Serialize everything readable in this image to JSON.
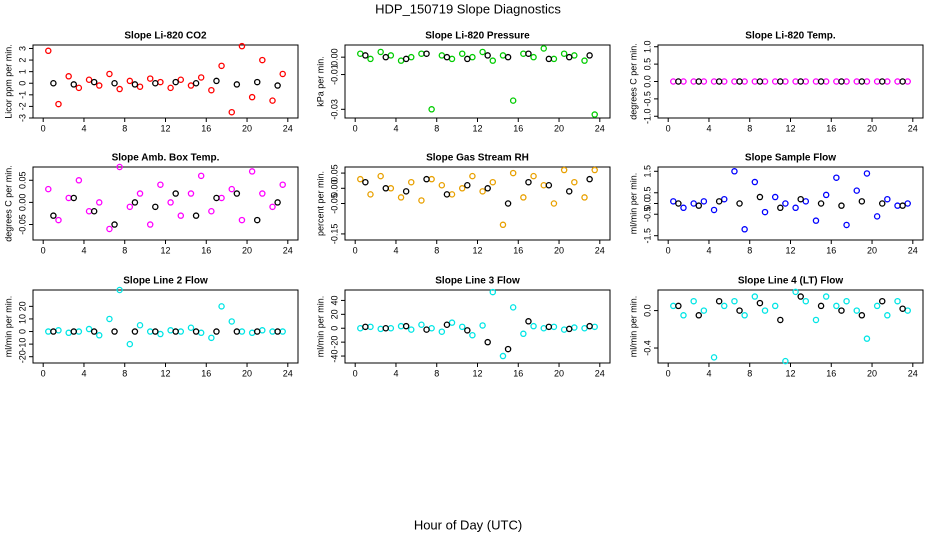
{
  "title": "HDP_150719  Slope Diagnostics",
  "xlabel": "Hour of Day (UTC)",
  "chart_data": [
    {
      "type": "scatter",
      "title": "Slope Li-820 CO2",
      "ylabel": "Licor ppm per min.",
      "xlim": [
        -1,
        25
      ],
      "xticks": [
        0,
        4,
        8,
        12,
        16,
        20,
        24
      ],
      "ylim": [
        -3,
        3.3
      ],
      "yticks": [
        -3,
        -2,
        -1,
        0,
        1,
        2,
        3
      ],
      "series": [
        {
          "color": "#ff0000",
          "x": [
            0.5,
            1.5,
            2.5,
            3.5,
            4.5,
            5.5,
            6.5,
            7.5,
            8.5,
            9.5,
            10.5,
            11.5,
            12.5,
            13.5,
            14.5,
            15.5,
            16.5,
            17.5,
            18.5,
            19.5,
            20.5,
            21.5,
            22.5,
            23.5
          ],
          "values": [
            2.8,
            -1.8,
            0.6,
            -0.4,
            0.3,
            -0.2,
            0.8,
            -0.5,
            0.2,
            -0.3,
            0.4,
            0.1,
            -0.4,
            0.3,
            -0.2,
            0.5,
            -0.6,
            1.5,
            -2.5,
            3.2,
            -1.2,
            2.0,
            -1.5,
            0.8
          ]
        },
        {
          "color": "#000000",
          "x": [
            1,
            3,
            5,
            7,
            9,
            11,
            13,
            15,
            17,
            19,
            21,
            23
          ],
          "values": [
            0,
            -0.1,
            0.1,
            0,
            -0.1,
            0,
            0.1,
            0,
            0.2,
            -0.1,
            0.1,
            -0.2
          ]
        }
      ]
    },
    {
      "type": "scatter",
      "title": "Slope Li-820 Pressure",
      "ylabel": "kPa per min.",
      "xlim": [
        -1,
        25
      ],
      "xticks": [
        0,
        4,
        8,
        12,
        16,
        20,
        24
      ],
      "ylim": [
        -0.035,
        0.007
      ],
      "yticks": [
        {
          "value": -0.03,
          "label": "-0.03"
        },
        {
          "value": -0.01,
          "label": "-0.01"
        },
        {
          "value": 0,
          "label": "0.00"
        }
      ],
      "series": [
        {
          "color": "#00cc00",
          "x": [
            0.5,
            1.5,
            2.5,
            3.5,
            4.5,
            5.5,
            6.5,
            7.5,
            8.5,
            9.5,
            10.5,
            11.5,
            12.5,
            13.5,
            14.5,
            15.5,
            16.5,
            17.5,
            18.5,
            19.5,
            20.5,
            21.5,
            22.5,
            23.5
          ],
          "values": [
            0.002,
            -0.001,
            0.003,
            0.001,
            -0.002,
            0.0,
            0.002,
            -0.03,
            0.001,
            -0.001,
            0.002,
            0.0,
            0.003,
            -0.002,
            0.001,
            -0.025,
            0.002,
            0.0,
            0.005,
            -0.001,
            0.002,
            0.001,
            -0.002,
            -0.033
          ]
        },
        {
          "color": "#000000",
          "x": [
            1,
            3,
            5,
            7,
            9,
            11,
            13,
            15,
            17,
            19,
            21,
            23
          ],
          "values": [
            0.001,
            0.0,
            -0.001,
            0.002,
            0.0,
            -0.001,
            0.001,
            0.0,
            0.002,
            -0.001,
            0.0,
            0.001
          ]
        }
      ]
    },
    {
      "type": "scatter",
      "title": "Slope Li-820 Temp.",
      "ylabel": "degrees C per min.",
      "xlim": [
        -1,
        25
      ],
      "xticks": [
        0,
        4,
        8,
        12,
        16,
        20,
        24
      ],
      "ylim": [
        -1.05,
        1.05
      ],
      "yticks": [
        {
          "value": -1,
          "label": "-1.0"
        },
        {
          "value": -0.5,
          "label": "-0.5"
        },
        {
          "value": 0,
          "label": "0.0"
        },
        {
          "value": 0.5,
          "label": "0.5"
        },
        {
          "value": 1,
          "label": "1.0"
        }
      ],
      "series": [
        {
          "color": "#ff00ff",
          "x": [
            0.5,
            1.5,
            2.5,
            3.5,
            4.5,
            5.5,
            6.5,
            7.5,
            8.5,
            9.5,
            10.5,
            11.5,
            12.5,
            13.5,
            14.5,
            15.5,
            16.5,
            17.5,
            18.5,
            19.5,
            20.5,
            21.5,
            22.5,
            23.5
          ],
          "values": [
            0,
            0,
            0,
            0,
            0,
            0,
            0,
            0,
            0,
            0,
            0,
            0,
            0,
            0,
            0,
            0,
            0,
            0,
            0,
            0,
            0,
            0,
            0,
            0
          ]
        },
        {
          "color": "#000000",
          "x": [
            1,
            3,
            5,
            7,
            9,
            11,
            13,
            15,
            17,
            19,
            21,
            23
          ],
          "values": [
            0,
            0,
            0,
            0,
            0,
            0,
            0,
            0,
            0,
            0,
            0,
            0
          ]
        }
      ]
    },
    {
      "type": "scatter",
      "title": "Slope Amb. Box Temp.",
      "ylabel": "degrees C per min.",
      "xlim": [
        -1,
        25
      ],
      "xticks": [
        0,
        4,
        8,
        12,
        16,
        20,
        24
      ],
      "ylim": [
        -0.085,
        0.08
      ],
      "yticks": [
        {
          "value": -0.05,
          "label": "-0.05"
        },
        {
          "value": 0,
          "label": "0.00"
        },
        {
          "value": 0.05,
          "label": "0.05"
        }
      ],
      "series": [
        {
          "color": "#ff00ff",
          "x": [
            0.5,
            1.5,
            2.5,
            3.5,
            4.5,
            5.5,
            6.5,
            7.5,
            8.5,
            9.5,
            10.5,
            11.5,
            12.5,
            13.5,
            14.5,
            15.5,
            16.5,
            17.5,
            18.5,
            19.5,
            20.5,
            21.5,
            22.5,
            23.5
          ],
          "values": [
            0.03,
            -0.04,
            0.01,
            0.05,
            -0.02,
            0.0,
            -0.06,
            0.08,
            -0.01,
            0.02,
            -0.05,
            0.04,
            0.0,
            -0.03,
            0.02,
            0.06,
            -0.02,
            0.01,
            0.03,
            -0.04,
            0.07,
            0.02,
            -0.01,
            0.04
          ]
        },
        {
          "color": "#000000",
          "x": [
            1,
            3,
            5,
            7,
            9,
            11,
            13,
            15,
            17,
            19,
            21,
            23
          ],
          "values": [
            -0.03,
            0.01,
            -0.02,
            -0.05,
            0.0,
            -0.01,
            0.02,
            -0.03,
            0.01,
            0.02,
            -0.04,
            0.0
          ]
        }
      ]
    },
    {
      "type": "scatter",
      "title": "Slope Gas Stream RH",
      "ylabel": "percent per min.",
      "xlim": [
        -1,
        25
      ],
      "xticks": [
        0,
        4,
        8,
        12,
        16,
        20,
        24
      ],
      "ylim": [
        -0.17,
        0.07
      ],
      "yticks": [
        {
          "value": -0.15,
          "label": "-0.15"
        },
        {
          "value": -0.05,
          "label": "-0.05"
        },
        {
          "value": 0,
          "label": "0.00"
        },
        {
          "value": 0.05,
          "label": "0.05"
        }
      ],
      "series": [
        {
          "color": "#e8a000",
          "x": [
            0.5,
            1.5,
            2.5,
            3.5,
            4.5,
            5.5,
            6.5,
            7.5,
            8.5,
            9.5,
            10.5,
            11.5,
            12.5,
            13.5,
            14.5,
            15.5,
            16.5,
            17.5,
            18.5,
            19.5,
            20.5,
            21.5,
            22.5,
            23.5
          ],
          "values": [
            0.03,
            -0.02,
            0.04,
            0.0,
            -0.03,
            0.02,
            -0.04,
            0.03,
            0.01,
            -0.02,
            0.0,
            0.04,
            -0.01,
            0.02,
            -0.12,
            0.05,
            -0.03,
            0.04,
            0.01,
            -0.05,
            0.06,
            0.02,
            -0.03,
            0.06
          ]
        },
        {
          "color": "#000000",
          "x": [
            1,
            3,
            5,
            7,
            9,
            11,
            13,
            15,
            17,
            19,
            21,
            23
          ],
          "values": [
            0.02,
            0.0,
            -0.01,
            0.03,
            -0.02,
            0.01,
            0.0,
            -0.05,
            0.02,
            0.01,
            -0.01,
            0.03
          ]
        }
      ]
    },
    {
      "type": "scatter",
      "title": "Slope Sample Flow",
      "ylabel": "ml/min per min.",
      "xlim": [
        -1,
        25
      ],
      "xticks": [
        0,
        4,
        8,
        12,
        16,
        20,
        24
      ],
      "ylim": [
        -1.7,
        1.7
      ],
      "yticks": [
        {
          "value": -1.5,
          "label": "-1.5"
        },
        {
          "value": -0.5,
          "label": "-0.5"
        },
        {
          "value": 0,
          "label": "0.0"
        },
        {
          "value": 0.5,
          "label": "0.5"
        },
        {
          "value": 1.5,
          "label": "1.5"
        }
      ],
      "series": [
        {
          "color": "#0000ff",
          "x": [
            0.5,
            1.5,
            2.5,
            3.5,
            4.5,
            5.5,
            6.5,
            7.5,
            8.5,
            9.5,
            10.5,
            11.5,
            12.5,
            13.5,
            14.5,
            15.5,
            16.5,
            17.5,
            18.5,
            19.5,
            20.5,
            21.5,
            22.5,
            23.5
          ],
          "values": [
            0.1,
            -0.2,
            0.0,
            0.1,
            -0.3,
            0.2,
            1.5,
            -1.2,
            1.0,
            -0.4,
            0.3,
            0.0,
            -0.2,
            0.1,
            -0.8,
            0.4,
            1.2,
            -1.0,
            0.6,
            1.4,
            -0.6,
            0.2,
            -0.1,
            0.0
          ]
        },
        {
          "color": "#000000",
          "x": [
            1,
            3,
            5,
            7,
            9,
            11,
            13,
            15,
            17,
            19,
            21,
            23
          ],
          "values": [
            0.0,
            -0.1,
            0.1,
            0.0,
            0.3,
            -0.2,
            0.2,
            0.0,
            -0.1,
            0.1,
            0.0,
            -0.1
          ]
        }
      ]
    },
    {
      "type": "scatter",
      "title": "Slope Line 2 Flow",
      "ylabel": "ml/min per min.",
      "xlim": [
        -1,
        25
      ],
      "xticks": [
        0,
        4,
        8,
        12,
        16,
        20,
        24
      ],
      "ylim": [
        -25,
        33
      ],
      "yticks": [
        -20,
        -10,
        0,
        10,
        20
      ],
      "series": [
        {
          "color": "#00e5e5",
          "x": [
            0.5,
            1.5,
            2.5,
            3.5,
            4.5,
            5.5,
            6.5,
            7.5,
            8.5,
            9.5,
            10.5,
            11.5,
            12.5,
            13.5,
            14.5,
            15.5,
            16.5,
            17.5,
            18.5,
            19.5,
            20.5,
            21.5,
            22.5,
            23.5
          ],
          "values": [
            0,
            1,
            -1,
            0,
            2,
            -3,
            10,
            33,
            -10,
            5,
            0,
            -2,
            1,
            0,
            3,
            -1,
            -5,
            20,
            8,
            0,
            -1,
            1,
            0,
            0
          ]
        },
        {
          "color": "#000000",
          "x": [
            1,
            3,
            5,
            7,
            9,
            11,
            13,
            15,
            17,
            19,
            21,
            23
          ],
          "values": [
            0,
            0,
            0,
            0,
            0,
            0,
            0,
            0,
            0,
            0,
            0,
            0
          ]
        }
      ]
    },
    {
      "type": "scatter",
      "title": "Slope Line 3 Flow",
      "ylabel": "ml/min per min.",
      "xlim": [
        -1,
        25
      ],
      "xticks": [
        0,
        4,
        8,
        12,
        16,
        20,
        24
      ],
      "ylim": [
        -50,
        55
      ],
      "yticks": [
        -40,
        -20,
        0,
        20,
        40
      ],
      "series": [
        {
          "color": "#00e5e5",
          "x": [
            0.5,
            1.5,
            2.5,
            3.5,
            4.5,
            5.5,
            6.5,
            7.5,
            8.5,
            9.5,
            10.5,
            11.5,
            12.5,
            13.5,
            14.5,
            15.5,
            16.5,
            17.5,
            18.5,
            19.5,
            20.5,
            21.5,
            22.5,
            23.5
          ],
          "values": [
            0,
            2,
            -1,
            0,
            3,
            -2,
            5,
            0,
            -5,
            8,
            2,
            -10,
            4,
            52,
            -40,
            30,
            -8,
            3,
            0,
            2,
            -2,
            1,
            0,
            2
          ]
        },
        {
          "color": "#000000",
          "x": [
            1,
            3,
            5,
            7,
            9,
            11,
            13,
            15,
            17,
            19,
            21,
            23
          ],
          "values": [
            2,
            0,
            3,
            -2,
            5,
            -3,
            -20,
            -30,
            10,
            2,
            -1,
            3
          ]
        }
      ]
    },
    {
      "type": "scatter",
      "title": "Slope Line 4 (LT) Flow",
      "ylabel": "ml/min per min.",
      "xlim": [
        -1,
        25
      ],
      "xticks": [
        0,
        4,
        8,
        12,
        16,
        20,
        24
      ],
      "ylim": [
        -0.56,
        0.22
      ],
      "yticks": [
        {
          "value": -0.4,
          "label": "-0.4"
        },
        {
          "value": 0,
          "label": "0.0"
        }
      ],
      "series": [
        {
          "color": "#00e5e5",
          "x": [
            0.5,
            1.5,
            2.5,
            3.5,
            4.5,
            5.5,
            6.5,
            7.5,
            8.5,
            9.5,
            10.5,
            11.5,
            12.5,
            13.5,
            14.5,
            15.5,
            16.5,
            17.5,
            18.5,
            19.5,
            20.5,
            21.5,
            22.5,
            23.5
          ],
          "values": [
            0.05,
            -0.05,
            0.1,
            0.0,
            -0.5,
            0.05,
            0.1,
            -0.05,
            0.15,
            0.0,
            0.05,
            -0.54,
            0.2,
            0.1,
            -0.1,
            0.15,
            0.05,
            0.1,
            0.0,
            -0.3,
            0.05,
            -0.05,
            0.1,
            0.0
          ]
        },
        {
          "color": "#000000",
          "x": [
            1,
            3,
            5,
            7,
            9,
            11,
            13,
            15,
            17,
            19,
            21,
            23
          ],
          "values": [
            0.05,
            -0.05,
            0.1,
            0.0,
            0.08,
            -0.1,
            0.15,
            0.05,
            0.0,
            -0.05,
            0.1,
            0.02
          ]
        }
      ]
    }
  ]
}
